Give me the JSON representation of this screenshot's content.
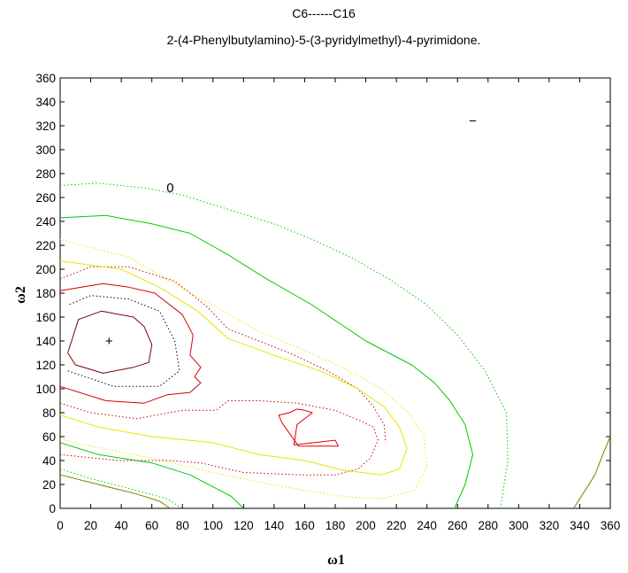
{
  "chart_data": {
    "type": "contour",
    "title": "C6------C16",
    "subtitle": "2-(4-Phenylbutylamino)-5-(3-pyridylmethyl)-4-pyrimidone.",
    "xlabel": "ω1",
    "ylabel": "ω2",
    "xlim": [
      0,
      360
    ],
    "ylim": [
      0,
      360
    ],
    "xticks": [
      0,
      20,
      40,
      60,
      80,
      100,
      120,
      140,
      160,
      180,
      200,
      220,
      240,
      260,
      280,
      300,
      320,
      340,
      360
    ],
    "yticks": [
      0,
      20,
      40,
      60,
      80,
      100,
      120,
      140,
      160,
      180,
      200,
      220,
      240,
      260,
      280,
      300,
      320,
      340,
      360
    ],
    "grid": false,
    "annotations": [
      {
        "text": "0",
        "x": 72,
        "y": 268
      },
      {
        "text": "+",
        "x": 32,
        "y": 140
      },
      {
        "text": "−",
        "x": 270,
        "y": 324
      }
    ],
    "contours": [
      {
        "color": "#7a0000",
        "dash": "solid",
        "points": [
          [
            5,
            130
          ],
          [
            12,
            158
          ],
          [
            27,
            165
          ],
          [
            48,
            160
          ],
          [
            55,
            152
          ],
          [
            60,
            137
          ],
          [
            58,
            122
          ],
          [
            48,
            118
          ],
          [
            28,
            113
          ],
          [
            10,
            120
          ],
          [
            5,
            130
          ]
        ]
      },
      {
        "color": "#000000",
        "dash": "dotted",
        "points": [
          [
            5,
            115
          ],
          [
            35,
            102
          ],
          [
            65,
            102
          ],
          [
            78,
            115
          ],
          [
            75,
            140
          ],
          [
            65,
            165
          ],
          [
            45,
            175
          ],
          [
            20,
            178
          ],
          [
            5,
            170
          ]
        ]
      },
      {
        "color": "#d40000",
        "dash": "solid",
        "points": [
          [
            0,
            102
          ],
          [
            30,
            90
          ],
          [
            55,
            88
          ],
          [
            70,
            95
          ],
          [
            85,
            97
          ],
          [
            92,
            105
          ],
          [
            88,
            110
          ],
          [
            92,
            118
          ],
          [
            85,
            128
          ],
          [
            87,
            145
          ],
          [
            80,
            162
          ],
          [
            62,
            180
          ],
          [
            45,
            185
          ],
          [
            28,
            188
          ],
          [
            0,
            182
          ]
        ]
      },
      {
        "color": "#d40000",
        "dash": "dotted",
        "points": [
          [
            0,
            88
          ],
          [
            20,
            80
          ],
          [
            50,
            75
          ],
          [
            80,
            82
          ],
          [
            102,
            82
          ],
          [
            110,
            90
          ],
          [
            130,
            90
          ],
          [
            155,
            88
          ],
          [
            180,
            82
          ],
          [
            195,
            74
          ],
          [
            205,
            68
          ],
          [
            208,
            57
          ],
          [
            203,
            42
          ],
          [
            195,
            33
          ],
          [
            180,
            28
          ],
          [
            158,
            28
          ],
          [
            120,
            30
          ],
          [
            92,
            38
          ],
          [
            72,
            40
          ],
          [
            38,
            40
          ],
          [
            0,
            45
          ]
        ]
      },
      {
        "color": "#d40000",
        "dash": "dotted",
        "points": [
          [
            0,
            192
          ],
          [
            20,
            202
          ],
          [
            45,
            202
          ],
          [
            75,
            190
          ],
          [
            95,
            170
          ],
          [
            110,
            150
          ],
          [
            130,
            140
          ],
          [
            150,
            130
          ],
          [
            175,
            115
          ],
          [
            195,
            100
          ],
          [
            205,
            85
          ],
          [
            212,
            70
          ],
          [
            213,
            55
          ]
        ]
      },
      {
        "color": "#e00000",
        "dash": "solid",
        "points": [
          [
            143,
            78
          ],
          [
            150,
            80
          ],
          [
            155,
            83
          ],
          [
            160,
            82
          ],
          [
            165,
            80
          ],
          [
            155,
            70
          ],
          [
            153,
            53
          ],
          [
            180,
            57
          ],
          [
            182,
            52
          ],
          [
            156,
            52
          ],
          [
            145,
            72
          ],
          [
            143,
            78
          ]
        ]
      },
      {
        "color": "#e6e600",
        "dash": "solid",
        "points": [
          [
            0,
            78
          ],
          [
            25,
            68
          ],
          [
            60,
            60
          ],
          [
            100,
            55
          ],
          [
            130,
            45
          ],
          [
            160,
            40
          ],
          [
            185,
            32
          ],
          [
            210,
            28
          ],
          [
            222,
            33
          ],
          [
            227,
            50
          ],
          [
            222,
            68
          ],
          [
            212,
            85
          ],
          [
            195,
            100
          ],
          [
            170,
            115
          ],
          [
            140,
            128
          ],
          [
            110,
            142
          ],
          [
            90,
            165
          ],
          [
            65,
            185
          ],
          [
            40,
            200
          ],
          [
            0,
            207
          ]
        ]
      },
      {
        "color": "#e6e600",
        "dash": "dotted",
        "points": [
          [
            0,
            58
          ],
          [
            20,
            52
          ],
          [
            60,
            42
          ],
          [
            100,
            30
          ],
          [
            130,
            22
          ],
          [
            160,
            15
          ],
          [
            185,
            10
          ],
          [
            210,
            8
          ],
          [
            232,
            15
          ],
          [
            240,
            35
          ],
          [
            238,
            60
          ],
          [
            228,
            80
          ],
          [
            210,
            100
          ],
          [
            185,
            118
          ],
          [
            160,
            132
          ],
          [
            130,
            148
          ],
          [
            100,
            170
          ],
          [
            72,
            190
          ],
          [
            45,
            210
          ],
          [
            0,
            225
          ]
        ]
      },
      {
        "color": "#00cc00",
        "dash": "solid",
        "points": [
          [
            0,
            55
          ],
          [
            25,
            45
          ],
          [
            60,
            38
          ],
          [
            85,
            28
          ],
          [
            100,
            18
          ],
          [
            112,
            10
          ],
          [
            120,
            0
          ]
        ]
      },
      {
        "color": "#00cc00",
        "dash": "solid",
        "points": [
          [
            258,
            0
          ],
          [
            265,
            20
          ],
          [
            270,
            45
          ],
          [
            265,
            70
          ],
          [
            255,
            90
          ],
          [
            245,
            105
          ],
          [
            230,
            120
          ],
          [
            200,
            140
          ],
          [
            165,
            170
          ],
          [
            135,
            192
          ],
          [
            110,
            212
          ],
          [
            85,
            230
          ],
          [
            60,
            238
          ],
          [
            30,
            245
          ],
          [
            0,
            243
          ]
        ]
      },
      {
        "color": "#00cc00",
        "dash": "dotted",
        "points": [
          [
            0,
            33
          ],
          [
            20,
            25
          ],
          [
            50,
            15
          ],
          [
            70,
            8
          ],
          [
            80,
            0
          ]
        ]
      },
      {
        "color": "#00cc00",
        "dash": "dotted",
        "points": [
          [
            0,
            270
          ],
          [
            25,
            272
          ],
          [
            55,
            268
          ],
          [
            80,
            262
          ],
          [
            110,
            250
          ],
          [
            140,
            238
          ],
          [
            165,
            225
          ],
          [
            190,
            210
          ],
          [
            215,
            192
          ],
          [
            240,
            170
          ],
          [
            260,
            145
          ],
          [
            278,
            115
          ],
          [
            292,
            80
          ],
          [
            293,
            40
          ],
          [
            288,
            0
          ]
        ]
      },
      {
        "color": "#808000",
        "dash": "solid",
        "points": [
          [
            0,
            28
          ],
          [
            25,
            20
          ],
          [
            50,
            12
          ],
          [
            65,
            6
          ],
          [
            72,
            0
          ]
        ]
      },
      {
        "color": "#808000",
        "dash": "solid",
        "points": [
          [
            336,
            0
          ],
          [
            345,
            18
          ],
          [
            350,
            28
          ],
          [
            355,
            45
          ],
          [
            360,
            60
          ]
        ]
      }
    ]
  }
}
